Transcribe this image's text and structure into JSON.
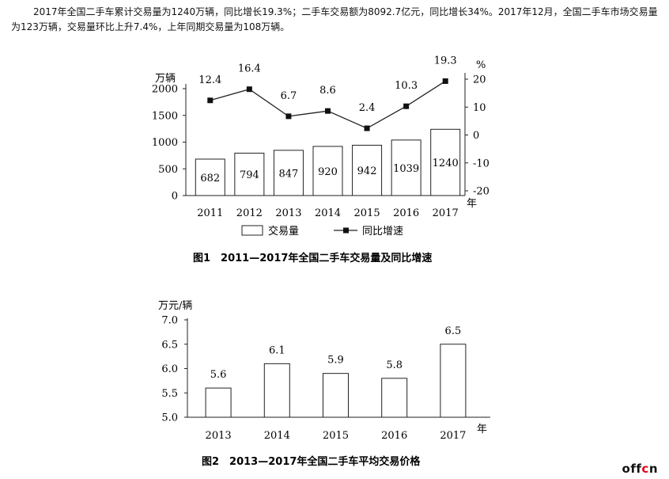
{
  "intro_text": "2017年全国二手车累计交易量为1240万辆，同比增长19.3%；二手车交易额为8092.7亿元，同比增长34%。2017年12月，全国二手车市场交易量为123万辆，交易量环比上升7.4%，上年同期交易量为108万辆。",
  "chart_data": [
    {
      "type": "bar+line",
      "title": "图1　2011—2017年全国二手车交易量及同比增速",
      "categories": [
        "2011",
        "2012",
        "2013",
        "2014",
        "2015",
        "2016",
        "2017"
      ],
      "x_unit": "年",
      "left_axis": {
        "unit": "万辆",
        "ylim": [
          0,
          2000
        ],
        "ticks": [
          "0",
          "500",
          "1000",
          "1500",
          "2000"
        ]
      },
      "right_axis": {
        "unit": "%",
        "ylim": [
          -20,
          20
        ],
        "ticks": [
          "-20",
          "-10",
          "0",
          "10",
          "20"
        ]
      },
      "series": [
        {
          "name": "交易量",
          "type": "bar",
          "values": [
            682,
            794,
            847,
            920,
            942,
            1039,
            1240
          ],
          "labels": [
            "682",
            "794",
            "847",
            "920",
            "942",
            "1039",
            "1240"
          ]
        },
        {
          "name": "同比增速",
          "type": "line",
          "values": [
            12.4,
            16.4,
            6.7,
            8.6,
            2.4,
            10.3,
            19.3
          ],
          "labels": [
            "12.4",
            "16.4",
            "6.7",
            "8.6",
            "2.4",
            "10.3",
            "19.3"
          ]
        }
      ],
      "legend": "bottom",
      "grid": false
    },
    {
      "type": "bar",
      "title": "图2　2013—2017年全国二手车平均交易价格",
      "categories": [
        "2013",
        "2014",
        "2015",
        "2016",
        "2017"
      ],
      "x_unit": "年",
      "y_unit": "万元/辆",
      "ylim": [
        5.0,
        7.0
      ],
      "y_ticks": [
        "5.0",
        "5.5",
        "6.0",
        "6.5",
        "7.0"
      ],
      "values": [
        5.6,
        6.1,
        5.9,
        5.8,
        6.5
      ],
      "labels": [
        "5.6",
        "6.1",
        "5.9",
        "5.8",
        "6.5"
      ],
      "grid": false
    }
  ],
  "watermark": {
    "text": "offcn",
    "color_main": "#111111",
    "color_accent": "#e60012"
  },
  "colors": {
    "bar_fill": "#ffffff",
    "stroke": "#222222",
    "marker": "#111111"
  }
}
